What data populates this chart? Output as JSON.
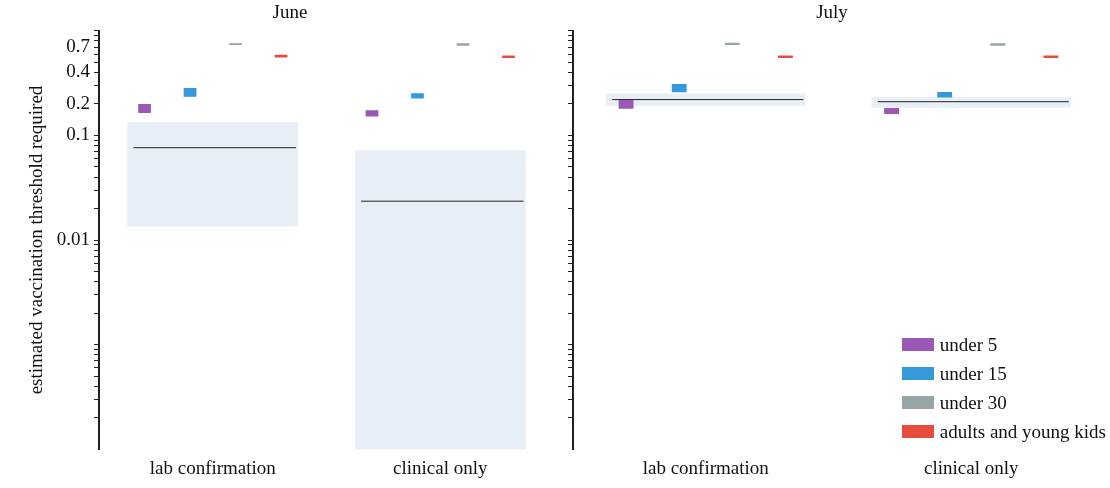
{
  "chart_data": [
    {
      "type": "bar",
      "title": "June",
      "ylabel": "estimated vaccination threshold required",
      "categories": [
        "lab confirmation",
        "clinical only"
      ],
      "log": "y",
      "ylim": [
        0.0001,
        1
      ],
      "grid": false,
      "legend": false,
      "yticks": [
        {
          "value": 0.0002,
          "label": null
        },
        {
          "value": 0.0003,
          "label": null
        },
        {
          "value": 0.0004,
          "label": null
        },
        {
          "value": 0.0005,
          "label": null
        },
        {
          "value": 0.0006,
          "label": null
        },
        {
          "value": 0.0007,
          "label": null
        },
        {
          "value": 0.0008,
          "label": null
        },
        {
          "value": 0.0009,
          "label": null
        },
        {
          "value": 0.001,
          "label": null
        },
        {
          "value": 0.002,
          "label": null
        },
        {
          "value": 0.003,
          "label": null
        },
        {
          "value": 0.004,
          "label": null
        },
        {
          "value": 0.005,
          "label": null
        },
        {
          "value": 0.006,
          "label": null
        },
        {
          "value": 0.007,
          "label": null
        },
        {
          "value": 0.008,
          "label": null
        },
        {
          "value": 0.009,
          "label": null
        },
        0.01,
        {
          "value": 0.02,
          "label": null
        },
        {
          "value": 0.03,
          "label": null
        },
        {
          "value": 0.04,
          "label": null
        },
        {
          "value": 0.05,
          "label": null
        },
        {
          "value": 0.06,
          "label": null
        },
        {
          "value": 0.07,
          "label": null
        },
        {
          "value": 0.08,
          "label": null
        },
        {
          "value": 0.09,
          "label": null
        },
        0.1,
        0.2,
        {
          "value": 0.3,
          "label": null
        },
        0.4,
        {
          "value": 0.5,
          "label": null
        },
        {
          "value": 0.6,
          "label": null
        },
        0.7,
        {
          "value": 0.8,
          "label": null
        },
        {
          "value": 0.9,
          "label": null
        },
        {
          "value": 1,
          "label": null
        }
      ],
      "series": [
        {
          "type": "box",
          "color": "#e8eef6",
          "boxes": [
            {
              "low": 0.0135,
              "q1": 0.0135,
              "median": 0.0763,
              "q3": 0.134,
              "high": 0.134
            },
            {
              "low": 0.0001,
              "q1": 0.0001,
              "median": 0.0235,
              "q3": 0.0718,
              "high": 0.0718
            }
          ]
        },
        {
          "color": "#9b59b6",
          "base": [
            0.164,
            0.152
          ],
          "values": [
            0.036,
            0.022
          ]
        },
        {
          "color": "#3498db",
          "base": [
            0.234,
            0.225
          ],
          "values": [
            0.05,
            0.028
          ]
        },
        {
          "color": "#95a5a6",
          "base": [
            0.73,
            0.72
          ],
          "values": [
            0.03,
            0.04
          ]
        },
        {
          "color": "#e74c3c",
          "base": [
            0.555,
            0.55
          ],
          "values": [
            0.035,
            0.03
          ]
        }
      ]
    },
    {
      "type": "bar",
      "title": "July",
      "categories": [
        "lab confirmation",
        "clinical only"
      ],
      "log": "y",
      "ylim": [
        0.0001,
        1
      ],
      "grid": false,
      "legend": "bottom right",
      "tick_labels": "x",
      "yticks": [
        {
          "value": 0.0002,
          "label": null
        },
        {
          "value": 0.0003,
          "label": null
        },
        {
          "value": 0.0004,
          "label": null
        },
        {
          "value": 0.0005,
          "label": null
        },
        {
          "value": 0.0006,
          "label": null
        },
        {
          "value": 0.0007,
          "label": null
        },
        {
          "value": 0.0008,
          "label": null
        },
        {
          "value": 0.0009,
          "label": null
        },
        {
          "value": 0.001,
          "label": null
        },
        {
          "value": 0.002,
          "label": null
        },
        {
          "value": 0.003,
          "label": null
        },
        {
          "value": 0.004,
          "label": null
        },
        {
          "value": 0.005,
          "label": null
        },
        {
          "value": 0.006,
          "label": null
        },
        {
          "value": 0.007,
          "label": null
        },
        {
          "value": 0.008,
          "label": null
        },
        {
          "value": 0.009,
          "label": null
        },
        {
          "value": 0.01,
          "label": null
        },
        {
          "value": 0.02,
          "label": null
        },
        {
          "value": 0.03,
          "label": null
        },
        {
          "value": 0.04,
          "label": null
        },
        {
          "value": 0.05,
          "label": null
        },
        {
          "value": 0.06,
          "label": null
        },
        {
          "value": 0.07,
          "label": null
        },
        {
          "value": 0.08,
          "label": null
        },
        {
          "value": 0.09,
          "label": null
        },
        {
          "value": 0.1,
          "label": null
        },
        {
          "value": 0.2,
          "label": null
        },
        {
          "value": 0.3,
          "label": null
        },
        {
          "value": 0.4,
          "label": null
        },
        {
          "value": 0.5,
          "label": null
        },
        {
          "value": 0.6,
          "label": null
        },
        {
          "value": 0.7,
          "label": null
        },
        {
          "value": 0.8,
          "label": null
        },
        {
          "value": 0.9,
          "label": null
        },
        {
          "value": 1,
          "label": null
        }
      ],
      "series": [
        {
          "type": "box",
          "color": "#e8eef6",
          "boxes": [
            {
              "low": 0.193,
              "q1": 0.193,
              "median": 0.22,
              "q3": 0.25,
              "high": 0.25
            },
            {
              "low": 0.185,
              "q1": 0.185,
              "median": 0.21,
              "q3": 0.23,
              "high": 0.23
            }
          ]
        },
        {
          "name": "under 5",
          "color": "#9b59b6",
          "base": [
            0.18,
            0.16
          ],
          "values": [
            0.038,
            0.023
          ]
        },
        {
          "name": "under 15",
          "color": "#3498db",
          "base": [
            0.259,
            0.23
          ],
          "values": [
            0.051,
            0.03
          ]
        },
        {
          "name": "under 30",
          "color": "#95a5a6",
          "base": [
            0.73,
            0.72
          ],
          "values": [
            0.04,
            0.04
          ]
        },
        {
          "name": "adults and young kids",
          "color": "#e74c3c",
          "base": [
            0.55,
            0.55
          ],
          "values": [
            0.03,
            0.03
          ]
        }
      ]
    }
  ]
}
